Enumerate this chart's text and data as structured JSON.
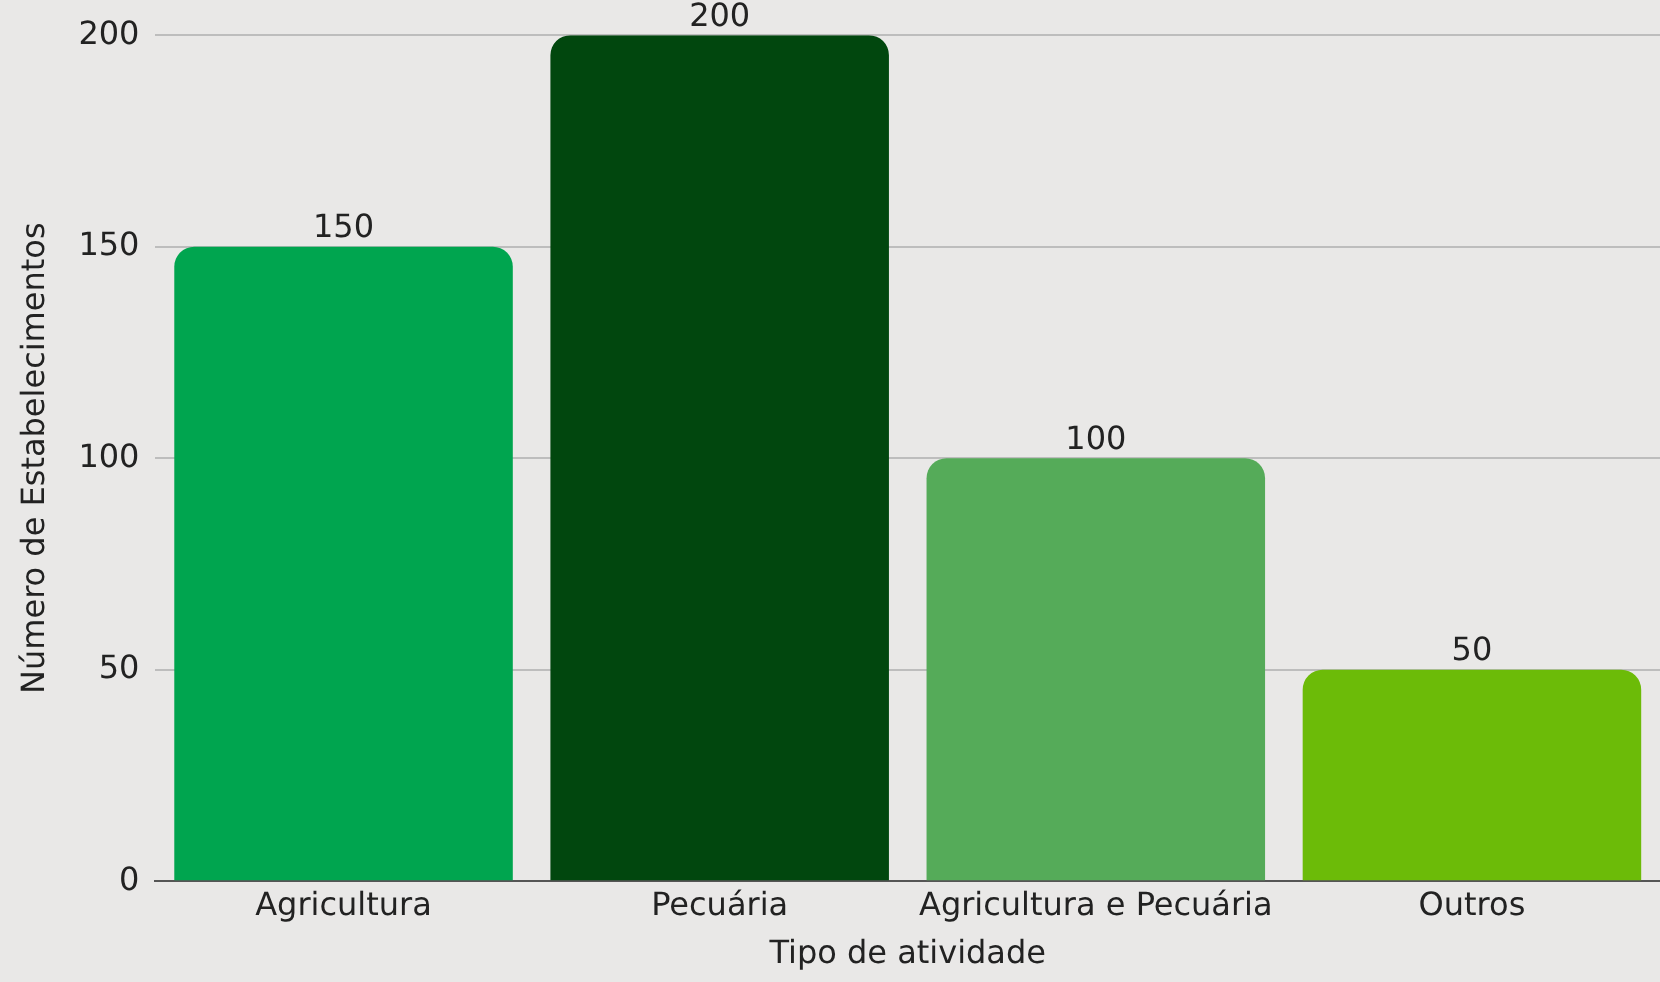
{
  "chart_data": {
    "type": "bar",
    "xlabel": "Tipo de atividade",
    "ylabel": "Número de Estabelecimentos",
    "categories": [
      "Agricultura",
      "Pecuária",
      "Agricultura e Pecuária",
      "Outros"
    ],
    "values": [
      150,
      200,
      100,
      50
    ],
    "colors": [
      "#00a54f",
      "#01470e",
      "#55ab59",
      "#6cbb08"
    ],
    "ylim": [
      0,
      200
    ],
    "yticks": [
      0,
      50,
      100,
      150,
      200
    ],
    "grid": "y",
    "data_labels": true,
    "legend": false
  }
}
